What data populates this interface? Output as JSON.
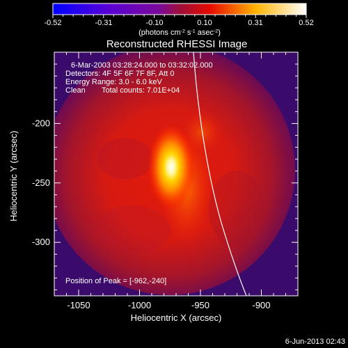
{
  "colorbar": {
    "ticks": [
      "-0.52",
      "-0.31",
      "-0.10",
      "0.10",
      "0.31",
      "0.52"
    ],
    "unit_label": "(photons cm",
    "unit_exp_1": "-2",
    "unit_mid_1": " s",
    "unit_exp_2": "-1",
    "unit_mid_2": " asec",
    "unit_exp_3": "-2",
    "unit_end": ")"
  },
  "plot": {
    "title": "Reconstructed RHESSI Image",
    "annotations": {
      "time_range": "6-Mar-2003 03:28:24.000 to 03:32:02.000",
      "detectors": "Detectors: 4F 5F 6F 7F 8F, Att 0",
      "energy_range": "Energy Range: 3.0 - 6.0 keV",
      "clean_label": "Clean",
      "total_counts": "Total counts: 7.01E+04",
      "peak_position": "Position of Peak = [-962,-240]"
    },
    "x_axis": {
      "label": "Heliocentric X (arcsec)",
      "range": [
        -1070,
        -870
      ],
      "ticks": [
        -1050,
        -1000,
        -950,
        -900
      ],
      "tick_labels": [
        "-1050",
        "-1000",
        "-950",
        "-900"
      ]
    },
    "y_axis": {
      "label": "Heliocentric Y (arcsec)",
      "range": [
        -345,
        -140
      ],
      "ticks": [
        -200,
        -250,
        -300
      ],
      "tick_labels": [
        "-200",
        "-250",
        "-300"
      ]
    },
    "peak": {
      "x": -962,
      "y": -240
    }
  },
  "footer": {
    "timestamp": "6-Jun-2013 02:43"
  }
}
